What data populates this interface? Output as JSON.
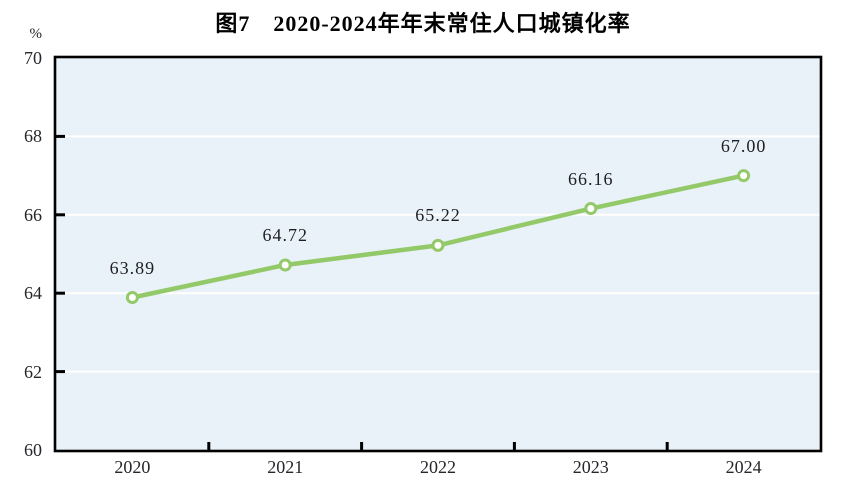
{
  "figure": {
    "title": "图7　2020-2024年年末常住人口城镇化率",
    "unit_label": "%"
  },
  "colors": {
    "line": "#93c969",
    "marker_fill": "#ffffff",
    "plot_background": "#e9f2f8",
    "gridline": "#ffffff",
    "axis": "#000000",
    "tick": "#000000",
    "text": "#26262b"
  },
  "chart_data": {
    "type": "line",
    "title": "图7　2020-2024年年末常住人口城镇化率",
    "categories": [
      "2020",
      "2021",
      "2022",
      "2023",
      "2024"
    ],
    "series": [
      {
        "name": "年末常住人口城镇化率",
        "values": [
          63.89,
          64.72,
          65.22,
          66.16,
          67.0
        ]
      }
    ],
    "data_labels": [
      "63.89",
      "64.72",
      "65.22",
      "66.16",
      "67.00"
    ],
    "xlabel": "",
    "ylabel": "%",
    "ylim": [
      60,
      70
    ],
    "ytick_interval": 2,
    "ytick_labels": [
      "70",
      "68",
      "66",
      "64",
      "62",
      "60"
    ],
    "grid": "horizontal-white-on-light-blue",
    "legend_position": "none",
    "marker": "open-circle"
  }
}
